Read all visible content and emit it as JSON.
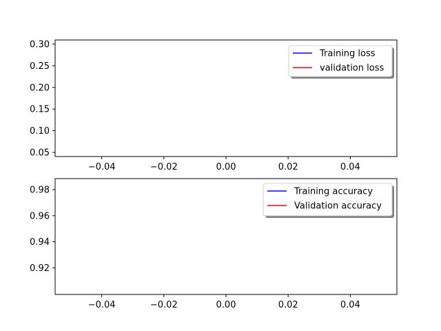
{
  "chart_data": [
    {
      "type": "line",
      "xlim": [
        -0.055,
        0.055
      ],
      "ylim": [
        0.0405,
        0.3095
      ],
      "xticks": [
        -0.04,
        -0.02,
        0.0,
        0.02,
        0.04
      ],
      "xtick_labels": [
        "−0.04",
        "−0.02",
        "0.00",
        "0.02",
        "0.04"
      ],
      "yticks": [
        0.05,
        0.1,
        0.15,
        0.2,
        0.25,
        0.3
      ],
      "ytick_labels": [
        "0.05",
        "0.10",
        "0.15",
        "0.20",
        "0.25",
        "0.30"
      ],
      "grid": false,
      "legend_position": "upper-right",
      "series": [
        {
          "name": "Training loss",
          "color": "#0000ff",
          "x": [],
          "y": []
        },
        {
          "name": "validation loss",
          "color": "#ff0000",
          "x": [],
          "y": []
        }
      ]
    },
    {
      "type": "line",
      "xlim": [
        -0.055,
        0.055
      ],
      "ylim": [
        0.8995,
        0.9885
      ],
      "xticks": [
        -0.04,
        -0.02,
        0.0,
        0.02,
        0.04
      ],
      "xtick_labels": [
        "−0.04",
        "−0.02",
        "0.00",
        "0.02",
        "0.04"
      ],
      "yticks": [
        0.92,
        0.94,
        0.96,
        0.98
      ],
      "ytick_labels": [
        "0.92",
        "0.94",
        "0.96",
        "0.98"
      ],
      "grid": false,
      "legend_position": "upper-right",
      "series": [
        {
          "name": "Training accuracy",
          "color": "#0000ff",
          "x": [],
          "y": []
        },
        {
          "name": "Validation accuracy",
          "color": "#ff0000",
          "x": [],
          "y": []
        }
      ]
    }
  ]
}
